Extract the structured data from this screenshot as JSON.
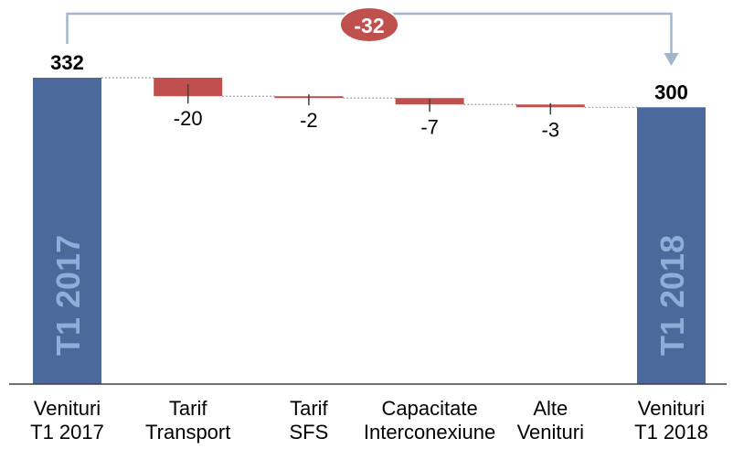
{
  "chart_data": {
    "type": "bar",
    "waterfall": true,
    "categories": [
      [
        "Venituri",
        "T1 2017"
      ],
      [
        "Tarif",
        "Transport"
      ],
      [
        "Tarif",
        "SFS"
      ],
      [
        "Capacitate",
        "Interconexiune"
      ],
      [
        "Alte",
        "Venituri"
      ],
      [
        "Venituri",
        "T1 2018"
      ]
    ],
    "values": [
      332,
      -20,
      -2,
      -7,
      -3,
      300
    ],
    "is_total": [
      true,
      false,
      false,
      false,
      false,
      true
    ],
    "value_labels": [
      "332",
      "-20",
      "-2",
      "-7",
      "-3",
      "300"
    ],
    "inner_labels": [
      {
        "index": 0,
        "text": "T1 2017"
      },
      {
        "index": 5,
        "text": "T1 2018"
      }
    ],
    "total_change": {
      "label": "-32",
      "value": -32,
      "from": 0,
      "to": 5
    },
    "grid": false,
    "colors": {
      "total_bar": "#4b6a9b",
      "decrease_bar": "#c0504d",
      "inner_label": "#8fadd9",
      "bracket": "#a2b6cb",
      "badge": "#c0504d",
      "badge_text": "#ffffff",
      "connector": "#808080",
      "axis": "#404040",
      "text": "#000000"
    }
  }
}
